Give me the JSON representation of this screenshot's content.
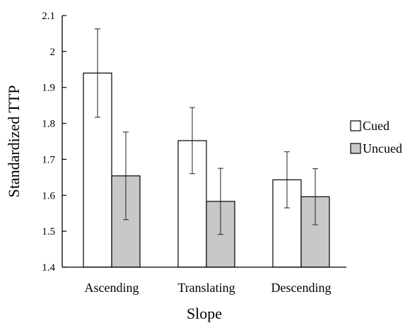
{
  "chart_data": {
    "type": "bar",
    "title": "",
    "xlabel": "Slope",
    "ylabel": "Standardized TTP",
    "ylim": [
      1.4,
      2.1
    ],
    "yticks": [
      1.4,
      1.5,
      1.6,
      1.7,
      1.8,
      1.9,
      2,
      2.1
    ],
    "grid": false,
    "legend_position": "right",
    "categories": [
      "Ascending",
      "Translating",
      "Descending"
    ],
    "series": [
      {
        "name": "Cued",
        "color": "#ffffff",
        "values": [
          1.94,
          1.752,
          1.643
        ],
        "error": [
          0.123,
          0.092,
          0.078
        ]
      },
      {
        "name": "Uncued",
        "color": "#c8c8c8",
        "values": [
          1.654,
          1.583,
          1.596
        ],
        "error": [
          0.122,
          0.092,
          0.078
        ]
      }
    ]
  }
}
